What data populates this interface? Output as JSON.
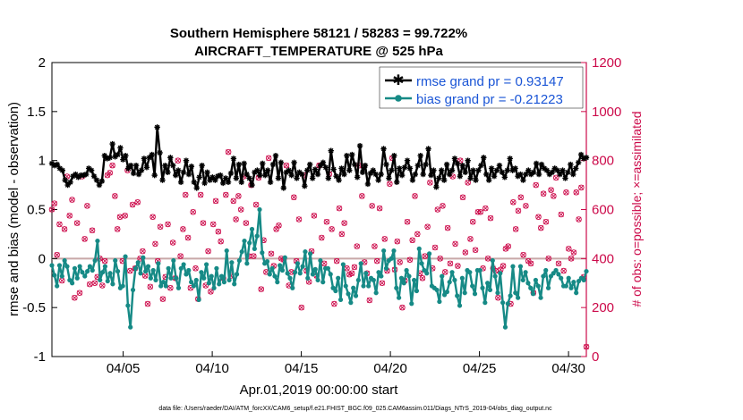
{
  "chart_data": {
    "type": "line",
    "title": "Southern Hemisphere 58121 / 58283 = 99.722%",
    "subtitle": "AIRCRAFT_TEMPERATURE @ 525 hPa",
    "xlabel": "Apr.01,2019 00:00:00 start",
    "ylabel": "rmse and bias (model - observation)",
    "y2label": "# of obs: o=possible; ×=assimilated",
    "footnote": "data file: /Users/raeder/DAI/ATM_forcXX/CAM6_setup/f.e21.FHIST_BGC.f09_025.CAM6assim.011/Diags_NTrS_2019-04/obs_diag_output.nc",
    "xlim": [
      1,
      31
    ],
    "ylim": [
      -1,
      2
    ],
    "y2lim": [
      0,
      1200
    ],
    "x_tick_values": [
      5,
      10,
      15,
      20,
      25,
      30
    ],
    "x_tick_labels": [
      "04/05",
      "04/10",
      "04/15",
      "04/20",
      "04/25",
      "04/30"
    ],
    "y_ticks": [
      "-1",
      "-0.5",
      "0",
      "0.5",
      "1",
      "1.5",
      "2"
    ],
    "y2_ticks": [
      "0",
      "200",
      "400",
      "600",
      "800",
      "1000",
      "1200"
    ],
    "legend_position": "top-right",
    "colors": {
      "rmse": "#000000",
      "bias": "#168a86",
      "obs": "#cc0a4a",
      "zero_line": "#c8a8a8",
      "legend_text": "#1a55d6"
    },
    "series": [
      {
        "name": "rmse grand pr = 0.93147",
        "axis": "left",
        "values": [
          0.97,
          0.95,
          0.96,
          0.92,
          0.9,
          0.8,
          0.75,
          0.78,
          0.84,
          0.86,
          0.83,
          0.85,
          0.85,
          0.86,
          0.92,
          0.9,
          0.84,
          0.8,
          0.75,
          0.79,
          1.05,
          1.02,
          1.03,
          1.17,
          1.04,
          1.06,
          1.13,
          1.01,
          1.05,
          0.92,
          0.95,
          0.87,
          0.95,
          0.86,
          0.9,
          1.02,
          0.93,
          1.03,
          1.06,
          0.85,
          1.34,
          1.08,
          0.8,
          0.95,
          0.88,
          1.03,
          0.95,
          0.85,
          0.9,
          0.78,
          0.88,
          1.0,
          0.86,
          0.94,
          0.78,
          0.72,
          0.83,
          0.95,
          0.77,
          0.88,
          0.8,
          0.83,
          0.8,
          0.84,
          0.85,
          0.77,
          0.82,
          0.78,
          0.87,
          1.02,
          0.82,
          0.96,
          0.78,
          0.97,
          0.86,
          0.82,
          0.75,
          0.88,
          0.9,
          0.85,
          0.97,
          0.85,
          0.9,
          0.78,
          0.96,
          1.05,
          0.82,
          0.98,
          0.72,
          0.88,
          0.9,
          0.85,
          0.98,
          0.82,
          0.88,
          0.86,
          0.74,
          0.9,
          0.96,
          0.82,
          0.91,
          0.86,
          0.95,
          0.98,
          0.93,
          0.82,
          1.1,
          0.91,
          0.84,
          0.8,
          0.92,
          0.86,
          1.05,
          0.9,
          1.06,
          0.96,
          0.83,
          1.15,
          0.88,
          0.95,
          0.76,
          0.87,
          0.9,
          0.86,
          0.8,
          0.86,
          1.12,
          0.96,
          0.82,
          0.9,
          1.05,
          0.78,
          0.92,
          0.85,
          0.93,
          1.0,
          0.92,
          0.8,
          0.86,
          0.95,
          1.05,
          0.86,
          0.96,
          1.12,
          0.85,
          0.9,
          0.73,
          0.82,
          0.9,
          0.8,
          0.96,
          0.86,
          0.9,
          1.02,
          0.97,
          0.84,
          0.95,
          0.88,
          1.0,
          0.82,
          0.9,
          0.8,
          0.9,
          0.95,
          1.03,
          0.86,
          0.8,
          0.92,
          0.84,
          0.9,
          0.95,
          0.88,
          0.83,
          0.9,
          1.02,
          0.9,
          0.92,
          0.84,
          0.86,
          0.8,
          0.86,
          0.9,
          0.86,
          0.88,
          0.97,
          0.86,
          0.96,
          0.92,
          0.9,
          0.86,
          0.88,
          0.92,
          0.9,
          0.86,
          0.9,
          0.82,
          0.88,
          0.96,
          0.86,
          0.92,
          0.98,
          1.06,
          1.02,
          1.03
        ]
      },
      {
        "name": "bias grand pr = -0.21223",
        "axis": "left",
        "values": [
          -0.07,
          -0.17,
          -0.28,
          -0.07,
          -0.18,
          -0.02,
          -0.08,
          -0.22,
          -0.25,
          -0.1,
          -0.2,
          -0.08,
          -0.14,
          -0.18,
          -0.13,
          -0.08,
          -0.12,
          -0.02,
          0.18,
          -0.22,
          -0.14,
          -0.08,
          -0.23,
          -0.15,
          -0.26,
          -0.02,
          -0.13,
          -0.3,
          -0.28,
          0.02,
          -0.48,
          -0.7,
          -0.32,
          -0.1,
          -0.04,
          -0.15,
          0.01,
          -0.13,
          -0.08,
          -0.2,
          -0.12,
          -0.22,
          -0.05,
          -0.28,
          -0.24,
          -0.28,
          -0.1,
          -0.2,
          -0.02,
          -0.2,
          -0.3,
          -0.1,
          -0.06,
          -0.16,
          -0.12,
          -0.24,
          -0.28,
          -0.22,
          -0.42,
          -0.14,
          -0.2,
          -0.06,
          -0.25,
          -0.18,
          -0.3,
          -0.1,
          -0.26,
          -0.18,
          -0.24,
          0.08,
          -0.22,
          -0.04,
          -0.26,
          -0.16,
          -0.02,
          0.07,
          0.18,
          -0.05,
          0.16,
          0.3,
          0.1,
          0.23,
          0.5,
          0.06,
          -0.05,
          -0.03,
          -0.16,
          -0.1,
          -0.18,
          -0.24,
          -0.07,
          -0.12,
          0.01,
          -0.15,
          -0.2,
          -0.3,
          -0.14,
          -0.05,
          -0.15,
          -0.08,
          0.07,
          -0.2,
          0.05,
          -0.16,
          -0.11,
          -0.22,
          -0.02,
          -0.24,
          -0.1,
          -0.1,
          -0.16,
          -0.3,
          -0.33,
          -0.2,
          -0.42,
          -0.06,
          -0.28,
          -0.36,
          -0.45,
          -0.3,
          -0.38,
          -0.22,
          -0.05,
          -0.28,
          -0.15,
          -0.28,
          -0.2,
          -0.22,
          -0.35,
          -0.14,
          -0.18,
          0.08,
          -0.1,
          -0.02,
          0.0,
          0.08,
          -0.3,
          -0.4,
          -0.2,
          -0.25,
          -0.12,
          -0.18,
          -0.46,
          -0.22,
          -0.33,
          0.1,
          -0.05,
          -0.12,
          -0.15,
          0.05,
          -0.28,
          -0.3,
          -0.32,
          -0.44,
          -0.18,
          -0.37,
          -0.34,
          -0.24,
          -0.14,
          -0.22,
          -0.38,
          -0.48,
          -0.2,
          -0.35,
          -0.12,
          -0.14,
          -0.28,
          -0.36,
          -0.12,
          -0.12,
          -0.3,
          -0.45,
          -0.25,
          -0.32,
          -0.02,
          -0.18,
          -0.35,
          -0.15,
          -0.45,
          -0.7,
          -0.46,
          -0.38,
          -0.08,
          -0.35,
          -0.4,
          -0.08,
          -0.22,
          -0.14,
          -0.25,
          -0.3,
          -0.36,
          -0.22,
          -0.28,
          -0.4,
          -0.18,
          -0.12,
          -0.3,
          -0.18,
          -0.15,
          -0.12,
          -0.16,
          -0.2,
          -0.28,
          -0.28,
          -0.2,
          -0.3,
          -0.24,
          -0.35,
          -0.23,
          -0.2,
          -0.22,
          -0.13
        ]
      },
      {
        "name": "obs possible/assimilated",
        "axis": "right",
        "values": [
          600,
          625,
          415,
          540,
          310,
          520,
          735,
          575,
          640,
          240,
          545,
          260,
          735,
          480,
          615,
          295,
          515,
          300,
          325,
          400,
          290,
          390,
          740,
          750,
          780,
          655,
          520,
          570,
          390,
          575,
          760,
          350,
          620,
          360,
          630,
          400,
          430,
          330,
          215,
          285,
          570,
          460,
          390,
          530,
          235,
          325,
          540,
          280,
          465,
          320,
          800,
          410,
          520,
          660,
          485,
          280,
          590,
          360,
          235,
          660,
          545,
          290,
          430,
          265,
          540,
          635,
          510,
          470,
          320,
          660,
          835,
          330,
          635,
          560,
          655,
          600,
          735,
          545,
          410,
          700,
          410,
          620,
          730,
          275,
          475,
          345,
          810,
          420,
          370,
          520,
          535,
          400,
          395,
          780,
          290,
          345,
          650,
          390,
          560,
          200,
          740,
          350,
          305,
          430,
          575,
          330,
          780,
          485,
          380,
          550,
          745,
          520,
          215,
          390,
          605,
          500,
          545,
          360,
          335,
          340,
          365,
          450,
          780,
          655,
          385,
          340,
          230,
          615,
          450,
          390,
          605,
          300,
          480,
          350,
          705,
          810,
          355,
          470,
          385,
          200,
          310,
          550,
          395,
          475,
          655,
          500,
          340,
          320,
          410,
          530,
          710,
          360,
          445,
          600,
          400,
          615,
          345,
          525,
          380,
          735,
          460,
          370,
          800,
          650,
          425,
          710,
          480,
          550,
          435,
          590,
          590,
          360,
          605,
          400,
          565,
          360,
          350,
          240,
          355,
          370,
          440,
          450,
          215,
          630,
          520,
          595,
          650,
          415,
          615,
          390,
          380,
          260,
          700,
          570,
          525,
          665,
          550,
          400,
          680,
          655,
          730,
          380,
          580,
          350,
          670,
          440,
          400,
          425,
          670,
          560,
          690,
          325,
          40
        ]
      }
    ]
  }
}
